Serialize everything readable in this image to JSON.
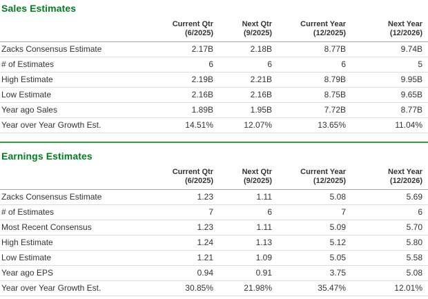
{
  "colors": {
    "section_title_green": "#077b21",
    "divider_green": "#2f9e41",
    "header_border_gray": "#a6a6a6",
    "row_border_gray": "#dcdcdc",
    "text": "#333333",
    "background": "#ffffff"
  },
  "sales": {
    "title": "Sales Estimates",
    "columns": [
      {
        "line1": "Current Qtr",
        "line2": "(6/2025)"
      },
      {
        "line1": "Next Qtr",
        "line2": "(9/2025)"
      },
      {
        "line1": "Current Year",
        "line2": "(12/2025)"
      },
      {
        "line1": "Next Year",
        "line2": "(12/2026)"
      }
    ],
    "rows": [
      {
        "label": "Zacks Consensus Estimate",
        "values": [
          "2.17B",
          "2.18B",
          "8.77B",
          "9.74B"
        ]
      },
      {
        "label": "# of Estimates",
        "values": [
          "6",
          "6",
          "6",
          "5"
        ]
      },
      {
        "label": "High Estimate",
        "values": [
          "2.19B",
          "2.21B",
          "8.79B",
          "9.95B"
        ]
      },
      {
        "label": "Low Estimate",
        "values": [
          "2.16B",
          "2.16B",
          "8.75B",
          "9.65B"
        ]
      },
      {
        "label": "Year ago Sales",
        "values": [
          "1.89B",
          "1.95B",
          "7.72B",
          "8.77B"
        ]
      },
      {
        "label": "Year over Year Growth Est.",
        "values": [
          "14.51%",
          "12.07%",
          "13.65%",
          "11.04%"
        ]
      }
    ]
  },
  "earnings": {
    "title": "Earnings Estimates",
    "columns": [
      {
        "line1": "Current Qtr",
        "line2": "(6/2025)"
      },
      {
        "line1": "Next Qtr",
        "line2": "(9/2025)"
      },
      {
        "line1": "Current Year",
        "line2": "(12/2025)"
      },
      {
        "line1": "Next Year",
        "line2": "(12/2026)"
      }
    ],
    "rows": [
      {
        "label": "Zacks Consensus Estimate",
        "values": [
          "1.23",
          "1.11",
          "5.08",
          "5.69"
        ]
      },
      {
        "label": "# of Estimates",
        "values": [
          "7",
          "6",
          "7",
          "6"
        ]
      },
      {
        "label": "Most Recent Consensus",
        "values": [
          "1.23",
          "1.11",
          "5.09",
          "5.70"
        ]
      },
      {
        "label": "High Estimate",
        "values": [
          "1.24",
          "1.13",
          "5.12",
          "5.80"
        ]
      },
      {
        "label": "Low Estimate",
        "values": [
          "1.21",
          "1.09",
          "5.05",
          "5.58"
        ]
      },
      {
        "label": "Year ago EPS",
        "values": [
          "0.94",
          "0.91",
          "3.75",
          "5.08"
        ]
      },
      {
        "label": "Year over Year Growth Est.",
        "values": [
          "30.85%",
          "21.98%",
          "35.47%",
          "12.01%"
        ]
      }
    ]
  }
}
